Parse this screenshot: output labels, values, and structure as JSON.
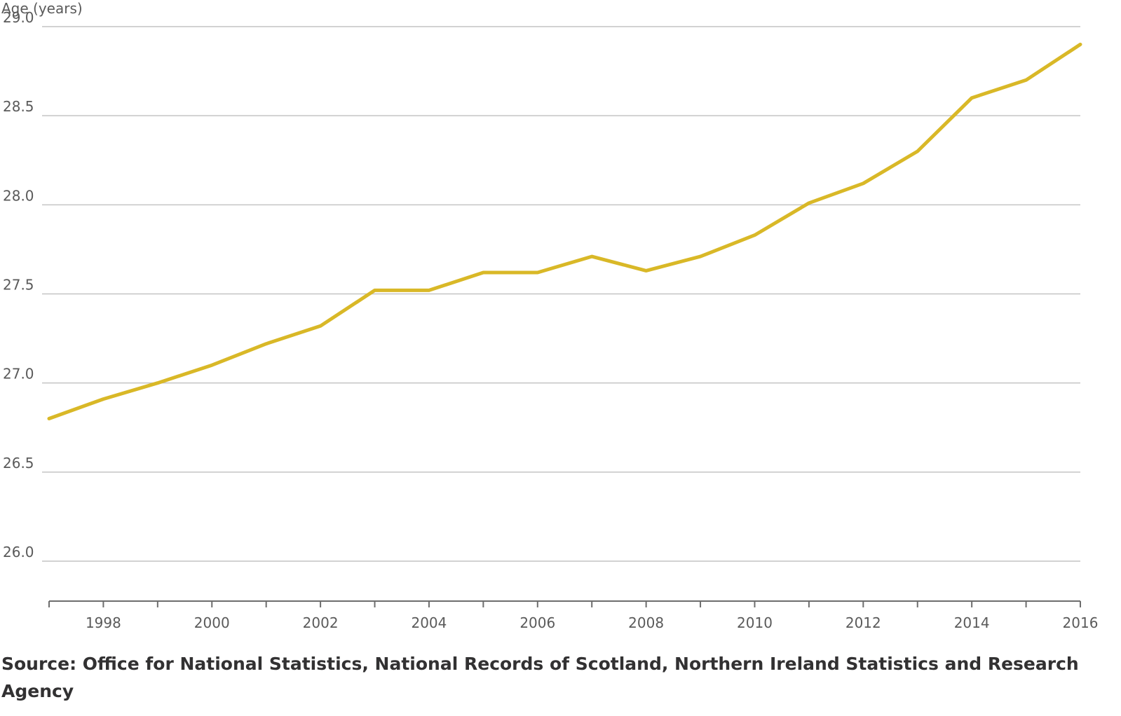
{
  "chart_data": {
    "type": "line",
    "title": "",
    "ylabel": "Age (years)",
    "xlabel": "",
    "ylim": [
      26.0,
      29.0
    ],
    "xlim": [
      1997,
      2016
    ],
    "y_ticks": [
      "26.0",
      "26.5",
      "27.0",
      "27.5",
      "28.0",
      "28.5",
      "29.0"
    ],
    "x_ticks": [
      "1998",
      "2000",
      "2002",
      "2004",
      "2006",
      "2008",
      "2010",
      "2012",
      "2014",
      "2016"
    ],
    "grid": true,
    "series": [
      {
        "x": [
          1997,
          1998,
          1999,
          2000,
          2001,
          2002,
          2003,
          2004,
          2005,
          2006,
          2007,
          2008,
          2009,
          2010,
          2011,
          2012,
          2013,
          2014,
          2015,
          2016
        ],
        "values": [
          26.8,
          26.91,
          27.0,
          27.1,
          27.22,
          27.32,
          27.52,
          27.52,
          27.62,
          27.62,
          27.71,
          27.63,
          27.71,
          27.83,
          28.01,
          28.12,
          28.3,
          28.6,
          28.7,
          28.9
        ],
        "color": "#d9b827"
      }
    ]
  },
  "footer": {
    "source": "Source: Office for National Statistics, National Records of Scotland, Northern Ireland Statistics and Research Agency"
  }
}
